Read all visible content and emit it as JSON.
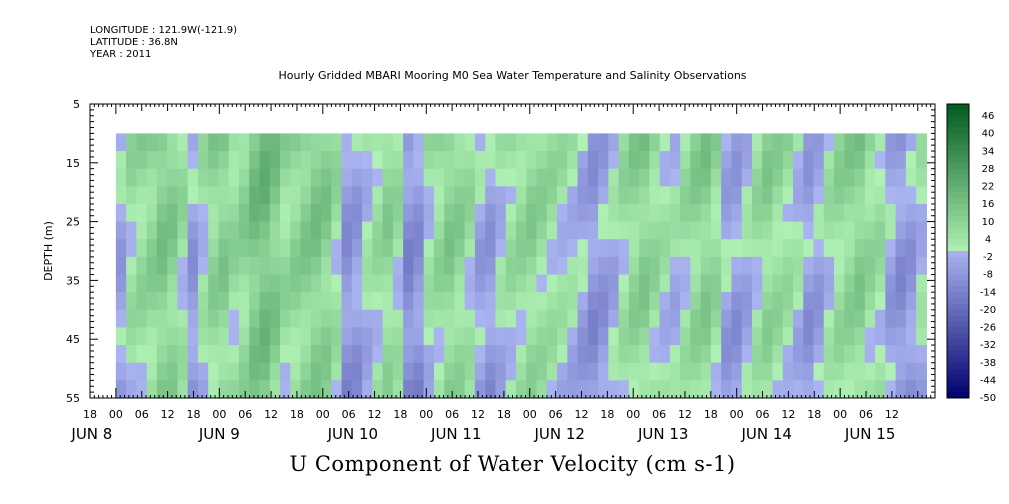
{
  "meta": {
    "longitude": "LONGITUDE : 121.9W(-121.9)",
    "latitude": "LATITUDE : 36.8N",
    "year": "YEAR : 2011"
  },
  "chart_data": {
    "type": "heatmap",
    "title": "Hourly Gridded MBARI Mooring M0 Sea Water Temperature and Salinity Observations",
    "variable_label": "U Component of Water Velocity (cm s-1)",
    "ylabel": "DEPTH (m)",
    "ylim": [
      55,
      5
    ],
    "y_ticks": [
      5,
      15,
      25,
      35,
      45,
      55
    ],
    "data_depth_range": [
      10,
      55
    ],
    "x_axis": {
      "range_hours": [
        "Jun 7 18:00",
        "Jun 15 22:00"
      ],
      "hour_ticks": [
        "18",
        "00",
        "06",
        "12",
        "18",
        "00",
        "06",
        "12",
        "18",
        "00",
        "06",
        "12",
        "18",
        "00",
        "06",
        "12",
        "18",
        "00",
        "06",
        "12",
        "18",
        "00",
        "06",
        "12",
        "18",
        "00",
        "06",
        "12",
        "18",
        "00",
        "06",
        "12"
      ],
      "day_labels": [
        "JUN 8",
        "JUN 9",
        "JUN 10",
        "JUN 11",
        "JUN 12",
        "JUN 13",
        "JUN 14",
        "JUN 15"
      ]
    },
    "colorbar": {
      "labels": [
        "46",
        "40",
        "34",
        "28",
        "22",
        "16",
        "10",
        "4",
        "-2",
        "-8",
        "-14",
        "-20",
        "-26",
        "-32",
        "-38",
        "-44",
        "-50"
      ],
      "min": -50,
      "max": 50,
      "colors": {
        "low": "#00006e",
        "mid_low": "#aab4f0",
        "mid_high": "#aff0b4",
        "high": "#005a1e"
      }
    },
    "column_means": [
      -2,
      6,
      8,
      10,
      14,
      12,
      6,
      -4,
      4,
      10,
      12,
      8,
      10,
      16,
      18,
      14,
      8,
      10,
      12,
      14,
      12,
      6,
      -6,
      -4,
      2,
      6,
      10,
      6,
      -8,
      -6,
      4,
      8,
      12,
      10,
      6,
      -2,
      -4,
      2,
      6,
      8,
      10,
      8,
      6,
      4,
      2,
      -2,
      -6,
      -4,
      0,
      6,
      10,
      12,
      8,
      4,
      2,
      6,
      10,
      12,
      8,
      -2,
      -4,
      0,
      6,
      10,
      8,
      6,
      2,
      -4,
      -2,
      4,
      8,
      10,
      12,
      8,
      6,
      -2,
      -6,
      -4,
      2
    ]
  }
}
